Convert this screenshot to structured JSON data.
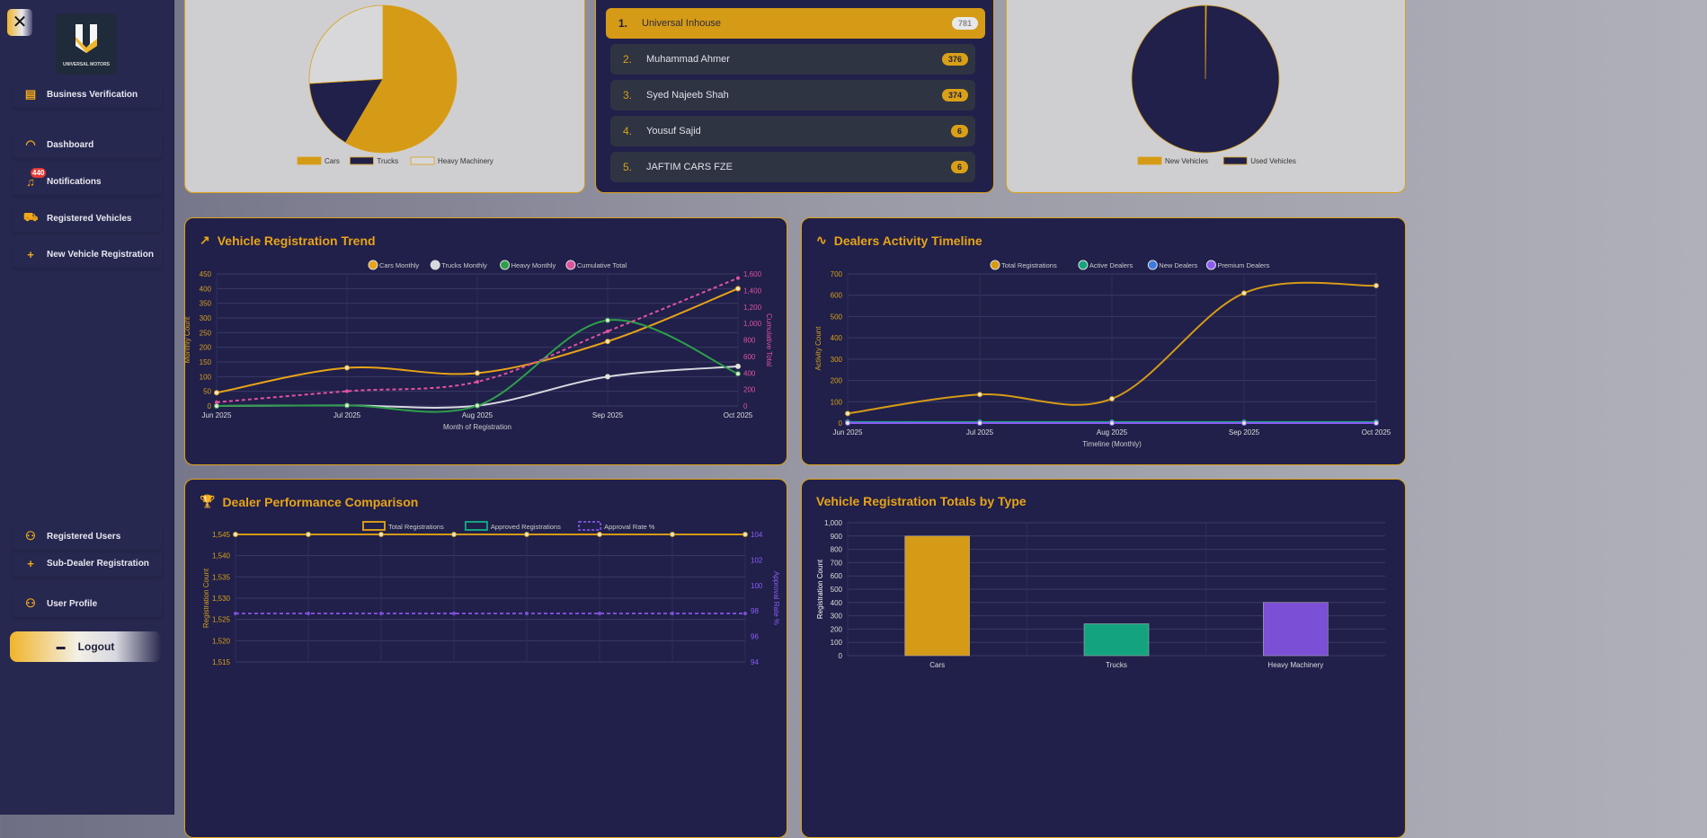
{
  "sidebar": {
    "logo_text": "UNIVERSAL MOTORS",
    "items": [
      {
        "label": "Business Verification",
        "icon": "document-icon"
      },
      {
        "label": "Dashboard",
        "icon": "gauge-icon"
      },
      {
        "label": "Notifications",
        "icon": "bell-icon",
        "badge": "440"
      },
      {
        "label": "Registered Vehicles",
        "icon": "car-icon"
      },
      {
        "label": "New Vehicle Registration",
        "icon": "plus-icon"
      },
      {
        "label": "Registered Users",
        "icon": "users-icon"
      },
      {
        "label": "Sub-Dealer Registration",
        "icon": "plus-icon"
      },
      {
        "label": "User Profile",
        "icon": "users-icon"
      }
    ],
    "logout": "Logout"
  },
  "leaderboard": [
    {
      "rank": "1.",
      "name": "Universal Inhouse",
      "count": "781"
    },
    {
      "rank": "2.",
      "name": "Muhammad Ahmer",
      "count": "376"
    },
    {
      "rank": "3.",
      "name": "Syed Najeeb Shah",
      "count": "374"
    },
    {
      "rank": "4.",
      "name": "Yousuf Sajid",
      "count": "6"
    },
    {
      "rank": "5.",
      "name": "JAFTIM CARS FZE",
      "count": "6"
    }
  ],
  "chart_data": [
    {
      "type": "pie",
      "labels": [
        "Cars",
        "Trucks",
        "Heavy Machinery"
      ],
      "values": [
        900,
        240,
        400
      ],
      "colors": [
        "#d59a16",
        "#20204a",
        "#d8d8da"
      ]
    },
    {
      "type": "pie",
      "labels": [
        "New Vehicles",
        "Used Vehicles"
      ],
      "values": [
        3,
        1537
      ],
      "colors": [
        "#d59a16",
        "#20204a"
      ]
    },
    {
      "type": "line",
      "title": "Vehicle Registration Trend",
      "x": [
        "Jun 2025",
        "Jul 2025",
        "Aug 2025",
        "Sep 2025",
        "Oct 2025"
      ],
      "xlabel": "Month of Registration",
      "ylabel": "Monthly Count",
      "y2label": "Cumulative Total",
      "ylim": [
        0,
        450
      ],
      "yticks": [
        0,
        50,
        100,
        150,
        200,
        250,
        300,
        350,
        400,
        450
      ],
      "y2lim": [
        0,
        1600
      ],
      "y2ticks": [
        0,
        200,
        400,
        600,
        800,
        1000,
        1200,
        1400,
        1600
      ],
      "series": [
        {
          "name": "Cars Monthly",
          "values": [
            45,
            130,
            112,
            220,
            400
          ],
          "color": "#e8a317"
        },
        {
          "name": "Trucks Monthly",
          "values": [
            0,
            2,
            1,
            100,
            135
          ],
          "color": "#d8d8e0"
        },
        {
          "name": "Heavy Monthly",
          "values": [
            0,
            2,
            1,
            292,
            110
          ],
          "color": "#2e9e4a"
        },
        {
          "name": "Cumulative Total",
          "values": [
            45,
            179,
            293,
            905,
            1550
          ],
          "color": "#e052a0",
          "axis": "y2",
          "dashed": true
        }
      ]
    },
    {
      "type": "line",
      "title": "Dealers Activity Timeline",
      "x": [
        "Jun 2025",
        "Jul 2025",
        "Aug 2025",
        "Sep 2025",
        "Oct 2025"
      ],
      "xlabel": "Timeline (Monthly)",
      "ylabel": "Activity Count",
      "ylim": [
        0,
        700
      ],
      "yticks": [
        0,
        100,
        200,
        300,
        400,
        500,
        600,
        700
      ],
      "series": [
        {
          "name": "Total Registrations",
          "values": [
            45,
            134,
            114,
            610,
            645
          ],
          "color": "#d59a16"
        },
        {
          "name": "Active Dealers",
          "values": [
            5,
            5,
            5,
            5,
            5
          ],
          "color": "#14a37f"
        },
        {
          "name": "New Dealers",
          "values": [
            1,
            0,
            0,
            0,
            0
          ],
          "color": "#3b7be0"
        },
        {
          "name": "Premium Dealers",
          "values": [
            0,
            0,
            0,
            0,
            0
          ],
          "color": "#8b5cf6"
        }
      ]
    },
    {
      "type": "line",
      "title": "Dealer Performance Comparison",
      "ylabel": "Registration Count",
      "y2label": "Approval Rate %",
      "ylim": [
        1515,
        1545
      ],
      "yticks": [
        1515,
        1520,
        1525,
        1530,
        1535,
        1540,
        1545
      ],
      "y2lim": [
        94,
        104
      ],
      "y2ticks": [
        94,
        96,
        98,
        100,
        102,
        104
      ],
      "series": [
        {
          "name": "Total Registrations",
          "values": [
            1545,
            1545,
            1545,
            1545,
            1545,
            1545,
            1545,
            1545
          ],
          "color": "#d59a16"
        },
        {
          "name": "Approved Registrations",
          "values": [],
          "color": "#14a37f"
        },
        {
          "name": "Approval Rate %",
          "values": [
            97.8,
            97.8,
            97.8,
            97.8,
            97.8,
            97.8,
            97.8,
            97.8
          ],
          "color": "#7b4fd6",
          "axis": "y2",
          "dashed": true
        }
      ]
    },
    {
      "type": "bar",
      "title": "Vehicle Registration Totals by Type",
      "categories": [
        "Cars",
        "Trucks",
        "Heavy Machinery"
      ],
      "values": [
        900,
        240,
        400
      ],
      "colors": [
        "#d59a16",
        "#14a37f",
        "#7b4fd6"
      ],
      "ylabel": "Registration Count",
      "ylim": [
        0,
        1000
      ],
      "yticks": [
        0,
        100,
        200,
        300,
        400,
        500,
        600,
        700,
        800,
        900,
        1000
      ]
    }
  ]
}
